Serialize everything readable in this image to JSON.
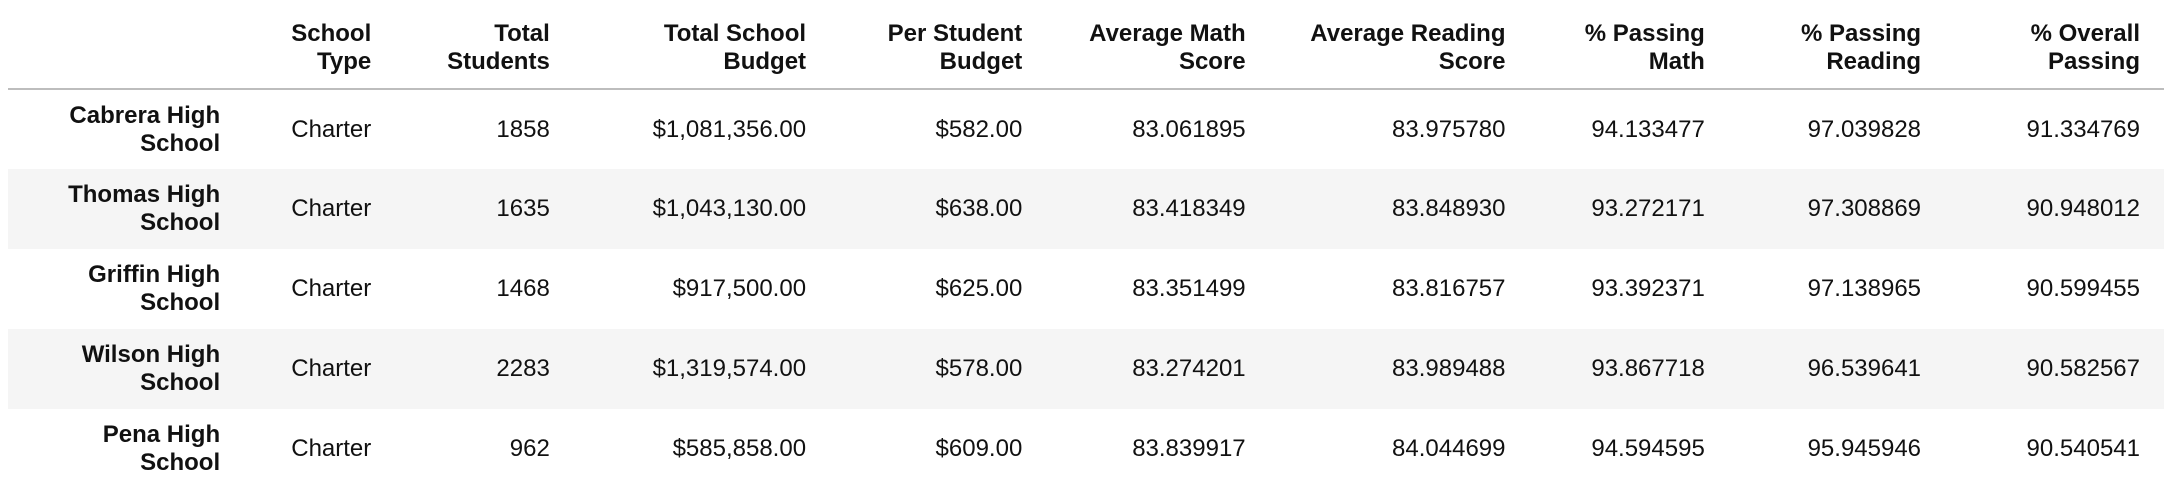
{
  "table": {
    "headers": [
      "School Type",
      "Total Students",
      "Total School Budget",
      "Per Student Budget",
      "Average Math Score",
      "Average Reading Score",
      "% Passing Math",
      "% Passing Reading",
      "% Overall Passing"
    ],
    "rows": [
      {
        "school": "Cabrera High School",
        "cells": [
          "Charter",
          "1858",
          "$1,081,356.00",
          "$582.00",
          "83.061895",
          "83.975780",
          "94.133477",
          "97.039828",
          "91.334769"
        ]
      },
      {
        "school": "Thomas High School",
        "cells": [
          "Charter",
          "1635",
          "$1,043,130.00",
          "$638.00",
          "83.418349",
          "83.848930",
          "93.272171",
          "97.308869",
          "90.948012"
        ]
      },
      {
        "school": "Griffin High School",
        "cells": [
          "Charter",
          "1468",
          "$917,500.00",
          "$625.00",
          "83.351499",
          "83.816757",
          "93.392371",
          "97.138965",
          "90.599455"
        ]
      },
      {
        "school": "Wilson High School",
        "cells": [
          "Charter",
          "2283",
          "$1,319,574.00",
          "$578.00",
          "83.274201",
          "83.989488",
          "93.867718",
          "96.539641",
          "90.582567"
        ]
      },
      {
        "school": "Pena High School",
        "cells": [
          "Charter",
          "962",
          "$585,858.00",
          "$609.00",
          "83.839917",
          "84.044699",
          "94.594595",
          "95.945946",
          "90.540541"
        ]
      }
    ]
  }
}
